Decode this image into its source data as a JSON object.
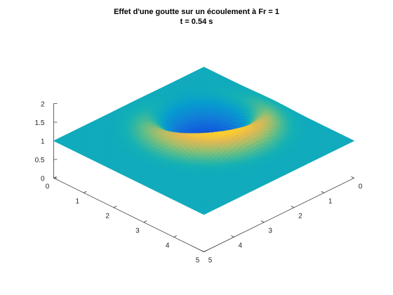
{
  "figure": {
    "title_line1": "Effet d'une goutte sur un écoulement à Fr = 1",
    "title_line2": "t = 0.54 s"
  },
  "chart_data": {
    "type": "surface",
    "title": "Effet d'une goutte sur un écoulement à Fr = 1\nt = 0.54 s",
    "xlabel": "",
    "ylabel": "",
    "zlabel": "",
    "xlim": [
      0,
      5
    ],
    "ylim": [
      0,
      5
    ],
    "zlim": [
      0,
      2
    ],
    "x_ticks": [
      "0",
      "1",
      "2",
      "3",
      "4",
      "5"
    ],
    "y_ticks": [
      "0",
      "1",
      "2",
      "3",
      "4",
      "5"
    ],
    "z_ticks": [
      "0",
      "0.5",
      "1",
      "1.5",
      "2"
    ],
    "colormap": "parula",
    "grid": false,
    "base_level": 1.0,
    "features": [
      {
        "kind": "depression",
        "x": 2.0,
        "y": 3.1,
        "amplitude": -0.65,
        "sigma": 0.65
      },
      {
        "kind": "ring_crest",
        "x": 2.0,
        "y": 3.1,
        "radius": 1.3,
        "amplitude": 0.6,
        "width": 0.35,
        "arc_center_angle_deg": 330,
        "arc_spread_deg": 70
      }
    ],
    "color_limits": [
      0.35,
      1.6
    ],
    "base_color": "#1aa7dc"
  }
}
